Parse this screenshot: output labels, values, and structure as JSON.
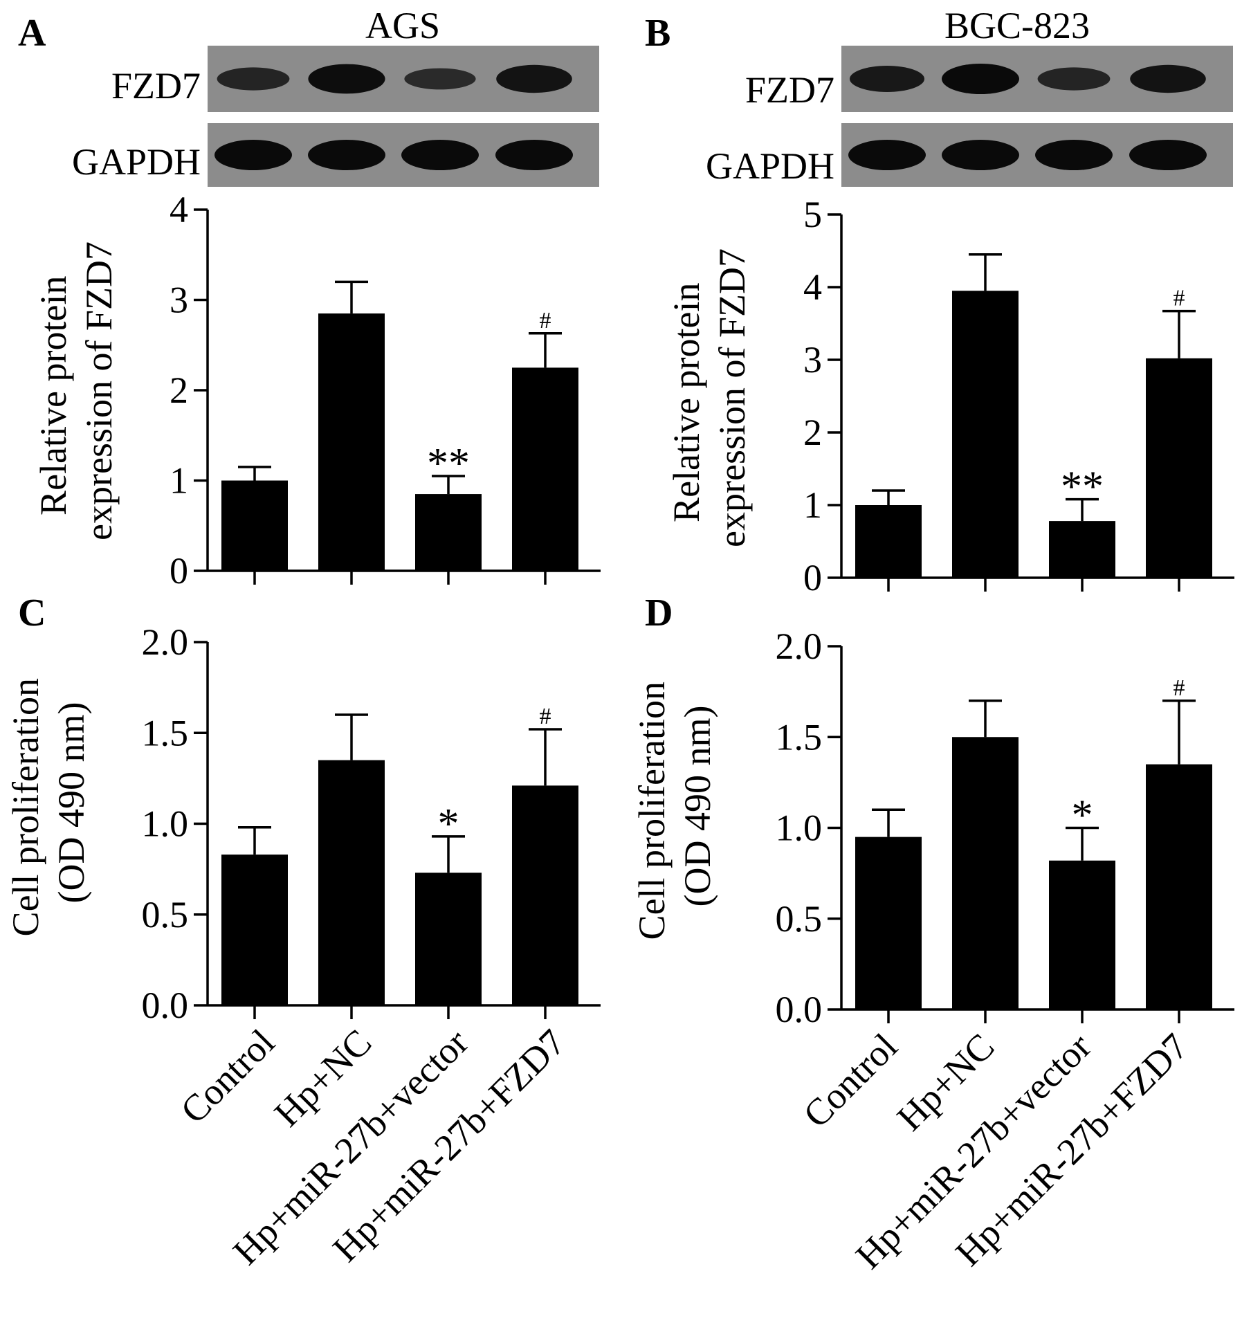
{
  "figure": {
    "categories": [
      "Control",
      "Hp+NC",
      "Hp+miR-27b+vector",
      "Hp+miR-27b+FZD7"
    ],
    "bar_color": "#000000",
    "blot_background": "#8c8c8c",
    "band_color": "#0a0a0a"
  },
  "panels": {
    "A": {
      "letter": "A",
      "title": "AGS",
      "blots": [
        {
          "label": "FZD7",
          "band_intensity": [
            0.55,
            0.95,
            0.45,
            0.85
          ]
        },
        {
          "label": "GAPDH",
          "band_intensity": [
            1.0,
            1.0,
            1.0,
            1.0
          ]
        }
      ]
    },
    "B": {
      "letter": "B",
      "title": "BGC-823",
      "blots": [
        {
          "label": "FZD7",
          "band_intensity": [
            0.75,
            1.0,
            0.55,
            0.85
          ]
        },
        {
          "label": "GAPDH",
          "band_intensity": [
            1.0,
            1.0,
            1.0,
            1.0
          ]
        }
      ]
    },
    "C": {
      "letter": "C"
    },
    "D": {
      "letter": "D"
    }
  },
  "chart_data": [
    {
      "panel": "A",
      "type": "bar",
      "categories": [
        "Control",
        "Hp+NC",
        "Hp+miR-27b+vector",
        "Hp+miR-27b+FZD7"
      ],
      "values": [
        1.0,
        2.85,
        0.85,
        2.25
      ],
      "errors": [
        0.15,
        0.35,
        0.2,
        0.38
      ],
      "annotations": [
        "",
        "",
        "**",
        "#"
      ],
      "ylabel": [
        "Relative protein",
        "expression of FZD7"
      ],
      "ylim": [
        0,
        4
      ],
      "yticks": [
        "0",
        "1",
        "2",
        "3",
        "4"
      ]
    },
    {
      "panel": "B",
      "type": "bar",
      "categories": [
        "Control",
        "Hp+NC",
        "Hp+miR-27b+vector",
        "Hp+miR-27b+FZD7"
      ],
      "values": [
        1.0,
        3.95,
        0.78,
        3.02
      ],
      "errors": [
        0.2,
        0.5,
        0.3,
        0.65
      ],
      "annotations": [
        "",
        "",
        "**",
        "#"
      ],
      "ylabel": [
        "Relative protein",
        "expression of FZD7"
      ],
      "ylim": [
        0,
        5
      ],
      "yticks": [
        "0",
        "1",
        "2",
        "3",
        "4",
        "5"
      ]
    },
    {
      "panel": "C",
      "type": "bar",
      "categories": [
        "Control",
        "Hp+NC",
        "Hp+miR-27b+vector",
        "Hp+miR-27b+FZD7"
      ],
      "values": [
        0.83,
        1.35,
        0.73,
        1.21
      ],
      "errors": [
        0.15,
        0.25,
        0.2,
        0.31
      ],
      "annotations": [
        "",
        "",
        "*",
        "#"
      ],
      "ylabel": [
        "Cell proliferation",
        "(OD 490 nm)"
      ],
      "ylim": [
        0,
        2
      ],
      "yticks": [
        "0.0",
        "0.5",
        "1.0",
        "1.5",
        "2.0"
      ]
    },
    {
      "panel": "D",
      "type": "bar",
      "categories": [
        "Control",
        "Hp+NC",
        "Hp+miR-27b+vector",
        "Hp+miR-27b+FZD7"
      ],
      "values": [
        0.95,
        1.5,
        0.82,
        1.35
      ],
      "errors": [
        0.15,
        0.2,
        0.18,
        0.35
      ],
      "annotations": [
        "",
        "",
        "*",
        "#"
      ],
      "ylabel": [
        "Cell proliferation",
        "(OD 490 nm)"
      ],
      "ylim": [
        0,
        2
      ],
      "yticks": [
        "0.0",
        "0.5",
        "1.0",
        "1.5",
        "2.0"
      ]
    }
  ]
}
